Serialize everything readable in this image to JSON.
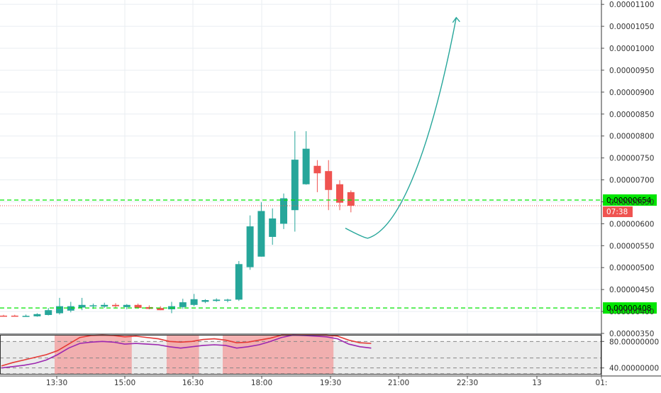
{
  "chart_data": [
    {
      "type": "candlestick",
      "title": "",
      "x_ticks": [
        "13:30",
        "15:00",
        "16:30",
        "18:00",
        "19:30",
        "21:00",
        "22:30",
        "13",
        "01:"
      ],
      "y_ticks": [
        "0.00000350",
        "0.00000400",
        "0.00000450",
        "0.00000500",
        "0.00000550",
        "0.00000600",
        "0.00000650",
        "0.00000700",
        "0.00000750",
        "0.00000800",
        "0.00000850",
        "0.00000900",
        "0.00000950",
        "0.00001000",
        "0.00001050",
        "0.00001100"
      ],
      "ylim": [
        3.5e-06,
        1.11e-05
      ],
      "grid": true,
      "candles": [
        {
          "o": 3.905e-06,
          "h": 3.925e-06,
          "l": 3.88e-06,
          "c": 3.895e-06
        },
        {
          "o": 3.905e-06,
          "h": 3.925e-06,
          "l": 3.88e-06,
          "c": 3.895e-06
        },
        {
          "o": 3.895e-06,
          "h": 3.93e-06,
          "l": 3.88e-06,
          "c": 3.9e-06
        },
        {
          "o": 3.89e-06,
          "h": 3.96e-06,
          "l": 3.88e-06,
          "c": 3.94e-06
        },
        {
          "o": 3.92e-06,
          "h": 4.08e-06,
          "l": 3.91e-06,
          "c": 4.03e-06
        },
        {
          "o": 3.96e-06,
          "h": 4.31e-06,
          "l": 3.93e-06,
          "c": 4.12e-06
        },
        {
          "o": 4.02e-06,
          "h": 4.22e-06,
          "l": 3.98e-06,
          "c": 4.12e-06
        },
        {
          "o": 4.09e-06,
          "h": 4.31e-06,
          "l": 4.03e-06,
          "c": 4.15e-06
        },
        {
          "o": 4.12e-06,
          "h": 4.18e-06,
          "l": 4.06e-06,
          "c": 4.14e-06
        },
        {
          "o": 4.11e-06,
          "h": 4.2e-06,
          "l": 4.08e-06,
          "c": 4.15e-06
        },
        {
          "o": 4.15e-06,
          "h": 4.19e-06,
          "l": 4.07e-06,
          "c": 4.12e-06
        },
        {
          "o": 4.1e-06,
          "h": 4.17e-06,
          "l": 4.05e-06,
          "c": 4.15e-06
        },
        {
          "o": 4.15e-06,
          "h": 4.18e-06,
          "l": 4.07e-06,
          "c": 4.08e-06
        },
        {
          "o": 4.1e-06,
          "h": 4.14e-06,
          "l": 4.05e-06,
          "c": 4.06e-06
        },
        {
          "o": 4.08e-06,
          "h": 4.12e-06,
          "l": 4.03e-06,
          "c": 4.03e-06
        },
        {
          "o": 4.05e-06,
          "h": 4.22e-06,
          "l": 3.96e-06,
          "c": 4.12e-06
        },
        {
          "o": 4.1e-06,
          "h": 4.29e-06,
          "l": 4.06e-06,
          "c": 4.21e-06
        },
        {
          "o": 4.15e-06,
          "h": 4.4e-06,
          "l": 4.12e-06,
          "c": 4.28e-06
        },
        {
          "o": 4.22e-06,
          "h": 4.28e-06,
          "l": 4.19e-06,
          "c": 4.26e-06
        },
        {
          "o": 4.24e-06,
          "h": 4.3e-06,
          "l": 4.22e-06,
          "c": 4.27e-06
        },
        {
          "o": 4.25e-06,
          "h": 4.29e-06,
          "l": 4.21e-06,
          "c": 4.27e-06
        },
        {
          "o": 4.27e-06,
          "h": 5.15e-06,
          "l": 4.24e-06,
          "c": 5.08e-06
        },
        {
          "o": 5.01e-06,
          "h": 6.19e-06,
          "l": 4.95e-06,
          "c": 5.94e-06
        },
        {
          "o": 5.25e-06,
          "h": 6.49e-06,
          "l": 5.25e-06,
          "c": 6.29e-06
        },
        {
          "o": 5.7e-06,
          "h": 6.35e-06,
          "l": 5.52e-06,
          "c": 6.12e-06
        },
        {
          "o": 6e-06,
          "h": 6.69e-06,
          "l": 5.88e-06,
          "c": 6.58e-06
        },
        {
          "o": 6.31e-06,
          "h": 8.11e-06,
          "l": 5.82e-06,
          "c": 7.46e-06
        },
        {
          "o": 6.9e-06,
          "h": 8.11e-06,
          "l": 6.89e-06,
          "c": 7.71e-06
        },
        {
          "o": 7.32e-06,
          "h": 7.45e-06,
          "l": 6.72e-06,
          "c": 7.15e-06
        },
        {
          "o": 7.2e-06,
          "h": 7.45e-06,
          "l": 6.31e-06,
          "c": 6.77e-06
        },
        {
          "o": 6.9e-06,
          "h": 6.99e-06,
          "l": 6.31e-06,
          "c": 6.48e-06
        },
        {
          "o": 6.72e-06,
          "h": 6.76e-06,
          "l": 6.26e-06,
          "c": 6.41e-06
        }
      ],
      "horizontal_lines": [
        {
          "value": 6.54e-06,
          "label": "0.00000654",
          "color": "#00e600"
        },
        {
          "value": 4.08e-06,
          "label": "0.00000408",
          "color": "#00e600"
        }
      ],
      "current_price": {
        "value": 6.41e-06,
        "label": "07:38",
        "color": "#ef5350"
      },
      "projection": {
        "color": "#26a69a",
        "points": [
          [
            30.5,
            5.9e-06
          ],
          [
            32.2,
            5.8e-06
          ],
          [
            35.0,
            6.35e-06
          ],
          [
            38.5,
            8.3e-06
          ],
          [
            40.4,
            1.07e-05
          ]
        ]
      },
      "colors": {
        "up": "#26a69a",
        "down": "#ef5350",
        "grid": "#e9eef2"
      }
    },
    {
      "type": "line",
      "title": "",
      "y_ticks": [
        "80.00000000",
        "40.00000000"
      ],
      "ylim": [
        30,
        90
      ],
      "overbought": 80,
      "oversold": 20,
      "series": [
        {
          "color": "#e53935",
          "values": [
            43,
            48,
            52,
            56,
            60,
            66,
            76,
            86,
            89,
            90,
            89,
            87,
            88,
            86,
            84,
            80,
            79,
            80,
            83,
            84,
            82,
            78,
            79,
            82,
            85,
            90,
            90,
            90,
            90,
            90,
            88,
            82,
            78,
            77
          ]
        },
        {
          "color": "#9c27b0",
          "values": [
            40,
            42,
            44,
            47,
            52,
            60,
            70,
            77,
            79,
            80,
            79,
            76,
            77,
            76,
            75,
            72,
            70,
            72,
            74,
            75,
            74,
            70,
            72,
            75,
            80,
            86,
            90,
            89,
            88,
            87,
            84,
            76,
            72,
            70
          ]
        }
      ],
      "highlight_ranges": [
        [
          5,
          11
        ],
        [
          15,
          17
        ],
        [
          20,
          29
        ]
      ],
      "colors": {
        "band": "#ebebeb",
        "highlight": "#f2a4a4"
      }
    }
  ]
}
